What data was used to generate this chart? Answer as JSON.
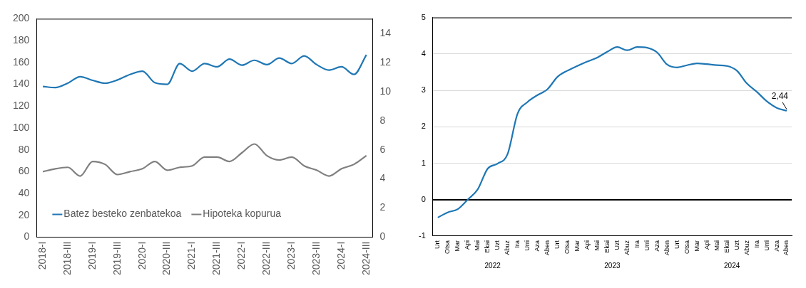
{
  "chart_data": [
    {
      "type": "line",
      "categories": [
        "2018-I",
        null,
        "2018-III",
        null,
        "2019-I",
        null,
        "2019-III",
        null,
        "2020-I",
        null,
        "2020-III",
        null,
        "2021-I",
        null,
        "2021-III",
        null,
        "2022-I",
        null,
        "2022-III",
        null,
        "2023-I",
        null,
        "2023-III",
        null,
        "2024-I",
        null,
        "2024-III"
      ],
      "series": [
        {
          "name": "Batez besteko zenbatekoa",
          "color": "#1f77b4",
          "values": [
            138,
            137,
            141,
            147,
            143.6,
            141,
            144,
            149,
            152,
            141.5,
            140,
            159,
            152,
            159,
            156,
            163,
            157.5,
            162,
            158,
            164,
            159,
            166,
            158,
            153,
            156,
            149,
            167
          ]
        },
        {
          "name": "Hipoteka kopurua",
          "color": "#7f7f7f",
          "axis": "y2",
          "values": [
            4.5,
            4.7,
            4.8,
            4.2,
            5.2,
            5.0,
            4.3,
            4.5,
            4.7,
            5.2,
            4.6,
            4.8,
            4.9,
            5.5,
            5.5,
            5.2,
            5.8,
            6.4,
            5.6,
            5.3,
            5.5,
            4.9,
            4.6,
            4.2,
            4.7,
            5.0,
            5.6
          ]
        }
      ],
      "ylim": [
        0,
        200
      ],
      "yticks": [
        0,
        20,
        40,
        60,
        80,
        100,
        120,
        140,
        160,
        180,
        200
      ],
      "y2lim": [
        0,
        15
      ],
      "y2ticks": [
        0,
        2,
        4,
        6,
        8,
        10,
        12,
        14
      ],
      "grid": false,
      "legend": "bottom left",
      "marker": "none",
      "line_style": "solid"
    },
    {
      "type": "line",
      "categories": [
        "Urt",
        "Otsa",
        "Mar",
        "Api",
        "Mai",
        "Ekai",
        "Uzt",
        "Abuz",
        "Ira",
        "Urri",
        "Aza",
        "Aben",
        "Urt",
        "Otsa",
        "Mar",
        "Api",
        "Mai",
        "Ekai",
        "Uzt",
        "Abuz",
        "Ira",
        "Urri",
        "Aza",
        "Aben",
        "Urt",
        "Otsa",
        "Mar",
        "Api",
        "Mai",
        "Ekai",
        "Uzt",
        "Abuz",
        "Ira",
        "Urri",
        "Aza",
        "Aben"
      ],
      "series": [
        {
          "color": "#1f77b4",
          "values": [
            -0.49,
            -0.35,
            -0.26,
            0.0,
            0.28,
            0.85,
            0.99,
            1.25,
            2.36,
            2.68,
            2.87,
            3.03,
            3.37,
            3.54,
            3.67,
            3.79,
            3.9,
            4.06,
            4.19,
            4.1,
            4.19,
            4.17,
            4.04,
            3.71,
            3.63,
            3.69,
            3.74,
            3.72,
            3.69,
            3.67,
            3.54,
            3.19,
            2.96,
            2.7,
            2.52,
            2.44
          ],
          "value_labels": [
            null,
            null,
            null,
            null,
            null,
            null,
            null,
            null,
            null,
            null,
            null,
            null,
            null,
            null,
            null,
            null,
            null,
            null,
            null,
            null,
            null,
            null,
            null,
            null,
            null,
            null,
            null,
            null,
            null,
            null,
            null,
            null,
            null,
            null,
            null,
            "2,44"
          ]
        }
      ],
      "annotations": [
        "2022",
        "2023",
        "2024"
      ],
      "ylim": [
        -1,
        5
      ],
      "yticks": [
        -1,
        0,
        1,
        2,
        3,
        4,
        5
      ],
      "grid": "y",
      "legend": false,
      "marker": "none",
      "line_style": "solid"
    }
  ]
}
